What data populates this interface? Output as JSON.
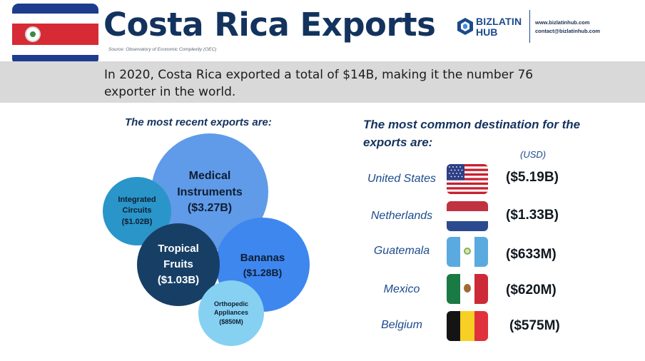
{
  "header": {
    "title": "Costa Rica Exports",
    "source": "Source: Observatory of Economic Complexity (OEC)",
    "flag_icon": "costa-rica-flag-icon",
    "logo": {
      "line1": "BIZLATIN",
      "line2": "HUB",
      "icon": "bizlatinhub-logo-icon"
    },
    "contact": {
      "website": "www.bizlatinhub.com",
      "email": "contact@bizlatinhub.com"
    }
  },
  "summary": {
    "text": "In 2020, Costa Rica exported a total of $14B, making it the number 76 exporter in the world."
  },
  "exports": {
    "heading": "The most recent exports are:",
    "items": [
      {
        "name": "Medical Instruments",
        "value": "($3.27B)",
        "color": "#5f9be8"
      },
      {
        "name": "Integrated Circuits",
        "value": "($1.02B)",
        "color": "#2a95c9"
      },
      {
        "name": "Bananas",
        "value": "($1.28B)",
        "color": "#3d87ef"
      },
      {
        "name": "Tropical Fruits",
        "value": "($1.03B)",
        "color": "#173f66"
      },
      {
        "name": "Orthopedic Appliances",
        "value": "($850M)",
        "color": "#86d1f1"
      }
    ]
  },
  "destinations": {
    "heading": "The most common destination for the exports are:",
    "unit": "(USD)",
    "items": [
      {
        "country": "United States",
        "amount": "($5.19B)",
        "flag_icon": "us-flag-icon"
      },
      {
        "country": "Netherlands",
        "amount": "($1.33B)",
        "flag_icon": "netherlands-flag-icon"
      },
      {
        "country": "Guatemala",
        "amount": "($633M)",
        "flag_icon": "guatemala-flag-icon"
      },
      {
        "country": "Mexico",
        "amount": "($620M)",
        "flag_icon": "mexico-flag-icon"
      },
      {
        "country": "Belgium",
        "amount": "($575M)",
        "flag_icon": "belgium-flag-icon"
      }
    ]
  }
}
